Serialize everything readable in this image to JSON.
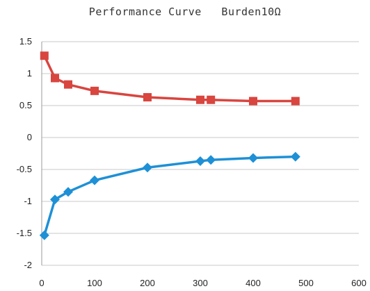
{
  "chart_data": {
    "type": "line",
    "title": "Performance Curve   Burden10Ω",
    "xlim": [
      0,
      600
    ],
    "ylim": [
      -2,
      1.5
    ],
    "x_ticks": [
      0,
      100,
      200,
      300,
      400,
      500,
      600
    ],
    "y_ticks": [
      -2,
      -1.5,
      -1,
      -0.5,
      0,
      0.5,
      1,
      1.5
    ],
    "x_tick_labels": [
      "0",
      "100",
      "200",
      "300",
      "400",
      "500",
      "600"
    ],
    "y_tick_labels": [
      "-2",
      "-1.5",
      "-1",
      "-0.5",
      "0",
      "0.5",
      "1",
      "1.5"
    ],
    "grid": "horizontal",
    "legend": "none",
    "series": [
      {
        "marker": "square",
        "color": "#d9453f",
        "x": [
          5,
          25,
          50,
          100,
          200,
          300,
          320,
          400,
          480
        ],
        "y": [
          1.28,
          0.93,
          0.83,
          0.73,
          0.63,
          0.59,
          0.59,
          0.57,
          0.57
        ]
      },
      {
        "marker": "diamond",
        "color": "#1e90d6",
        "x": [
          5,
          25,
          50,
          100,
          200,
          300,
          320,
          400,
          480
        ],
        "y": [
          -1.53,
          -0.97,
          -0.85,
          -0.67,
          -0.47,
          -0.37,
          -0.35,
          -0.32,
          -0.3
        ]
      }
    ]
  }
}
